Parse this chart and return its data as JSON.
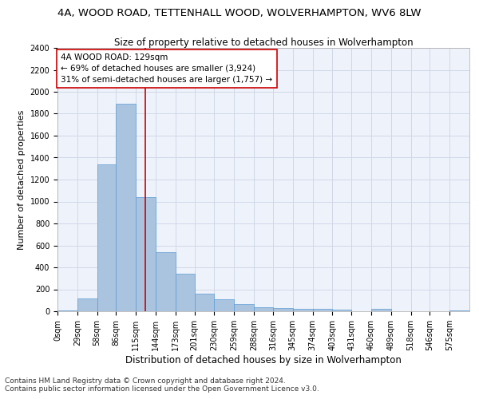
{
  "title": "4A, WOOD ROAD, TETTENHALL WOOD, WOLVERHAMPTON, WV6 8LW",
  "subtitle": "Size of property relative to detached houses in Wolverhampton",
  "xlabel": "Distribution of detached houses by size in Wolverhampton",
  "ylabel": "Number of detached properties",
  "bin_labels": [
    "0sqm",
    "29sqm",
    "58sqm",
    "86sqm",
    "115sqm",
    "144sqm",
    "173sqm",
    "201sqm",
    "230sqm",
    "259sqm",
    "288sqm",
    "316sqm",
    "345sqm",
    "374sqm",
    "403sqm",
    "431sqm",
    "460sqm",
    "489sqm",
    "518sqm",
    "546sqm",
    "575sqm"
  ],
  "bin_edges": [
    0,
    29,
    58,
    86,
    115,
    144,
    173,
    201,
    230,
    259,
    288,
    316,
    345,
    374,
    403,
    431,
    460,
    489,
    518,
    546,
    575
  ],
  "bar_heights": [
    10,
    120,
    1340,
    1890,
    1040,
    540,
    340,
    160,
    110,
    65,
    40,
    30,
    25,
    20,
    15,
    0,
    20,
    0,
    0,
    0,
    10
  ],
  "bar_color": "#aac4e0",
  "bar_edgecolor": "#5b9bd5",
  "grid_color": "#d0d8e8",
  "background_color": "#eef2fa",
  "vline_x": 129,
  "vline_color": "#cc0000",
  "annotation_title": "4A WOOD ROAD: 129sqm",
  "annotation_line1": "← 69% of detached houses are smaller (3,924)",
  "annotation_line2": "31% of semi-detached houses are larger (1,757) →",
  "annotation_box_color": "#ffffff",
  "annotation_border_color": "#cc0000",
  "ylim": [
    0,
    2400
  ],
  "yticks": [
    0,
    200,
    400,
    600,
    800,
    1000,
    1200,
    1400,
    1600,
    1800,
    2000,
    2200,
    2400
  ],
  "footer1": "Contains HM Land Registry data © Crown copyright and database right 2024.",
  "footer2": "Contains public sector information licensed under the Open Government Licence v3.0.",
  "title_fontsize": 9.5,
  "subtitle_fontsize": 8.5,
  "xlabel_fontsize": 8.5,
  "ylabel_fontsize": 8,
  "tick_fontsize": 7,
  "annotation_fontsize": 7.5,
  "footer_fontsize": 6.5
}
